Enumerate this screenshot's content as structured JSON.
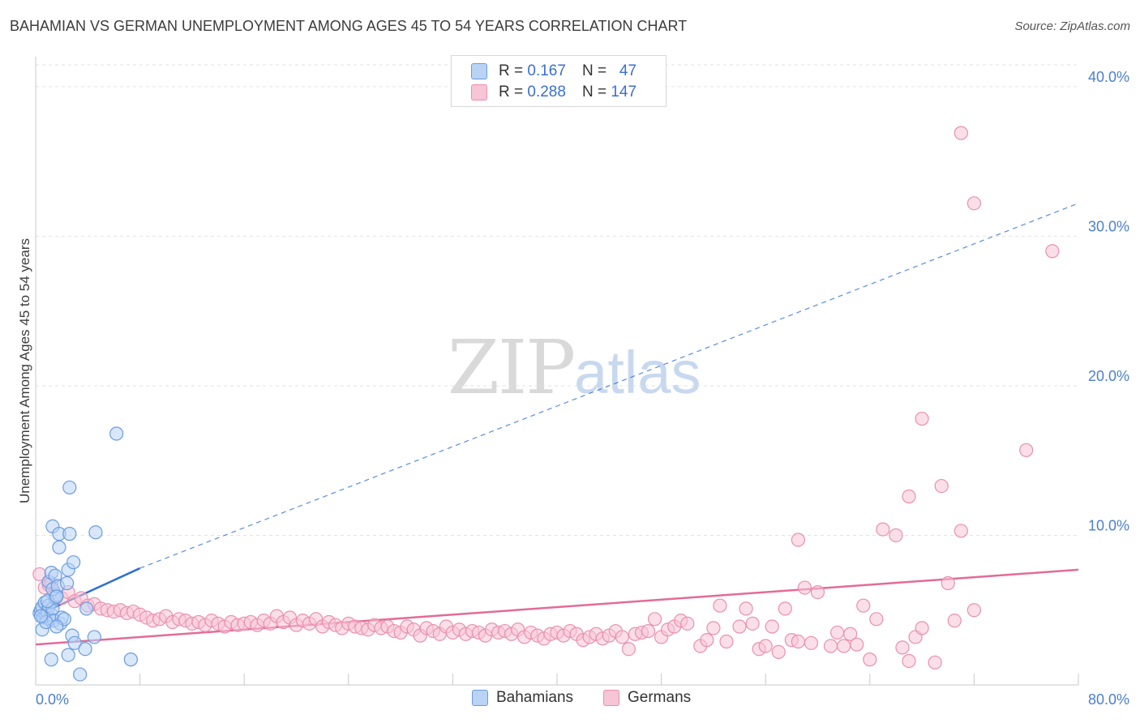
{
  "title": "BAHAMIAN VS GERMAN UNEMPLOYMENT AMONG AGES 45 TO 54 YEARS CORRELATION CHART",
  "source": "Source: ZipAtlas.com",
  "watermark": {
    "zip": "ZIP",
    "atlas": "atlas"
  },
  "legend": {
    "rows": [
      {
        "r_label": "R = ",
        "r_value": "0.167",
        "n_label": "N = ",
        "n_value": "47"
      },
      {
        "r_label": "R = ",
        "r_value": "0.288",
        "n_label": "N = ",
        "n_value": "147"
      }
    ]
  },
  "bottom_legend": {
    "bahamians": "Bahamians",
    "germans": "Germans"
  },
  "colors": {
    "bahamian_fill": "#b9d3f5",
    "bahamian_stroke": "#6a9be0",
    "bahamian_line": "#2f6fd1",
    "german_fill": "#f7c5d5",
    "german_stroke": "#ea8fae",
    "german_line": "#e36b98",
    "axis_text": "#4a7fd0",
    "grid": "#e2e2e2"
  },
  "chart_data": {
    "type": "scatter",
    "title": "BAHAMIAN VS GERMAN UNEMPLOYMENT AMONG AGES 45 TO 54 YEARS CORRELATION CHART",
    "xlabel": "",
    "ylabel": "Unemployment Among Ages 45 to 54 years",
    "xlim": [
      0,
      80
    ],
    "ylim": [
      0,
      42
    ],
    "x_tick_labels": [
      "0.0%",
      "80.0%"
    ],
    "y_ticks": [
      10,
      20,
      30,
      40
    ],
    "y_tick_labels": [
      "10.0%",
      "20.0%",
      "30.0%",
      "40.0%"
    ],
    "grid": true,
    "series": [
      {
        "name": "Bahamians",
        "r": 0.167,
        "n": 47,
        "trend": {
          "x": [
            0,
            8
          ],
          "y": [
            4.6,
            7.8
          ],
          "extended_to": [
            80,
            32.2
          ]
        },
        "points": [
          [
            0.3,
            4.8
          ],
          [
            0.4,
            5.0
          ],
          [
            0.5,
            5.2
          ],
          [
            0.6,
            4.5
          ],
          [
            0.7,
            5.5
          ],
          [
            0.8,
            4.6
          ],
          [
            0.9,
            4.9
          ],
          [
            1.0,
            5.3
          ],
          [
            1.1,
            4.4
          ],
          [
            1.2,
            4.7
          ],
          [
            1.3,
            5.1
          ],
          [
            1.4,
            4.3
          ],
          [
            1.5,
            5.8
          ],
          [
            1.6,
            6.0
          ],
          [
            0.5,
            3.7
          ],
          [
            0.8,
            4.2
          ],
          [
            1.0,
            6.9
          ],
          [
            1.2,
            7.5
          ],
          [
            1.5,
            7.3
          ],
          [
            1.3,
            6.4
          ],
          [
            1.7,
            6.6
          ],
          [
            1.9,
            4.1
          ],
          [
            2.0,
            4.5
          ],
          [
            2.2,
            4.4
          ],
          [
            2.4,
            6.8
          ],
          [
            2.5,
            7.7
          ],
          [
            1.8,
            9.2
          ],
          [
            1.3,
            10.6
          ],
          [
            1.8,
            10.1
          ],
          [
            2.6,
            10.1
          ],
          [
            2.9,
            8.2
          ],
          [
            4.6,
            10.2
          ],
          [
            2.6,
            13.2
          ],
          [
            6.2,
            16.8
          ],
          [
            0.4,
            4.6
          ],
          [
            0.9,
            5.6
          ],
          [
            1.6,
            5.9
          ],
          [
            2.8,
            3.3
          ],
          [
            3.0,
            2.8
          ],
          [
            3.8,
            2.4
          ],
          [
            4.5,
            3.2
          ],
          [
            2.5,
            2.0
          ],
          [
            1.2,
            1.7
          ],
          [
            7.3,
            1.7
          ],
          [
            3.4,
            0.7
          ],
          [
            1.6,
            3.9
          ],
          [
            3.9,
            5.1
          ]
        ]
      },
      {
        "name": "Germans",
        "r": 0.288,
        "n": 147,
        "trend": {
          "x": [
            0,
            80
          ],
          "y": [
            2.7,
            7.7
          ]
        },
        "points": [
          [
            0.3,
            7.4
          ],
          [
            0.7,
            6.5
          ],
          [
            1.0,
            6.7
          ],
          [
            1.5,
            6.1
          ],
          [
            2.0,
            5.8
          ],
          [
            2.5,
            6.2
          ],
          [
            3.0,
            5.6
          ],
          [
            3.5,
            5.8
          ],
          [
            4.0,
            5.3
          ],
          [
            4.5,
            5.4
          ],
          [
            5.0,
            5.1
          ],
          [
            5.5,
            5.0
          ],
          [
            6.0,
            4.9
          ],
          [
            6.5,
            5.0
          ],
          [
            7.0,
            4.8
          ],
          [
            7.5,
            4.9
          ],
          [
            8.0,
            4.7
          ],
          [
            8.5,
            4.5
          ],
          [
            9.0,
            4.3
          ],
          [
            9.5,
            4.4
          ],
          [
            10.0,
            4.6
          ],
          [
            10.5,
            4.2
          ],
          [
            11.0,
            4.4
          ],
          [
            11.5,
            4.3
          ],
          [
            12.0,
            4.1
          ],
          [
            12.5,
            4.2
          ],
          [
            13.0,
            4.0
          ],
          [
            13.5,
            4.3
          ],
          [
            14.0,
            4.1
          ],
          [
            14.5,
            3.9
          ],
          [
            15.0,
            4.2
          ],
          [
            15.5,
            4.0
          ],
          [
            16.0,
            4.1
          ],
          [
            16.5,
            4.2
          ],
          [
            17.0,
            4.0
          ],
          [
            17.5,
            4.3
          ],
          [
            18.0,
            4.1
          ],
          [
            18.5,
            4.6
          ],
          [
            19.0,
            4.2
          ],
          [
            19.5,
            4.5
          ],
          [
            20.0,
            4.0
          ],
          [
            20.5,
            4.3
          ],
          [
            21.0,
            4.1
          ],
          [
            21.5,
            4.4
          ],
          [
            22.0,
            3.9
          ],
          [
            22.5,
            4.2
          ],
          [
            23.0,
            4.0
          ],
          [
            23.5,
            3.8
          ],
          [
            24.0,
            4.1
          ],
          [
            24.5,
            3.9
          ],
          [
            25.0,
            3.8
          ],
          [
            25.5,
            3.7
          ],
          [
            26.0,
            4.0
          ],
          [
            26.5,
            3.8
          ],
          [
            27.0,
            3.9
          ],
          [
            27.5,
            3.6
          ],
          [
            28.0,
            3.5
          ],
          [
            28.5,
            3.9
          ],
          [
            29.0,
            3.7
          ],
          [
            29.5,
            3.3
          ],
          [
            30.0,
            3.8
          ],
          [
            30.5,
            3.6
          ],
          [
            31.0,
            3.4
          ],
          [
            31.5,
            3.9
          ],
          [
            32.0,
            3.5
          ],
          [
            32.5,
            3.7
          ],
          [
            33.0,
            3.4
          ],
          [
            33.5,
            3.6
          ],
          [
            34.0,
            3.5
          ],
          [
            34.5,
            3.3
          ],
          [
            35.0,
            3.7
          ],
          [
            35.5,
            3.5
          ],
          [
            36.0,
            3.6
          ],
          [
            36.5,
            3.4
          ],
          [
            37.0,
            3.7
          ],
          [
            37.5,
            3.2
          ],
          [
            38.0,
            3.5
          ],
          [
            38.5,
            3.3
          ],
          [
            39.0,
            3.1
          ],
          [
            39.5,
            3.4
          ],
          [
            40.0,
            3.5
          ],
          [
            40.5,
            3.3
          ],
          [
            41.0,
            3.6
          ],
          [
            41.5,
            3.4
          ],
          [
            42.0,
            3.0
          ],
          [
            42.5,
            3.2
          ],
          [
            43.0,
            3.4
          ],
          [
            43.5,
            3.1
          ],
          [
            44.0,
            3.3
          ],
          [
            44.5,
            3.6
          ],
          [
            45.0,
            3.2
          ],
          [
            45.5,
            2.4
          ],
          [
            46.0,
            3.4
          ],
          [
            46.5,
            3.5
          ],
          [
            47.0,
            3.6
          ],
          [
            47.5,
            4.4
          ],
          [
            48.0,
            3.2
          ],
          [
            48.5,
            3.7
          ],
          [
            49.0,
            3.9
          ],
          [
            49.5,
            4.3
          ],
          [
            50.0,
            4.1
          ],
          [
            51.0,
            2.6
          ],
          [
            51.5,
            3.0
          ],
          [
            52.0,
            3.8
          ],
          [
            52.5,
            5.3
          ],
          [
            53.0,
            2.9
          ],
          [
            54.0,
            3.9
          ],
          [
            54.5,
            5.1
          ],
          [
            55.0,
            4.1
          ],
          [
            55.5,
            2.4
          ],
          [
            56.0,
            2.6
          ],
          [
            56.5,
            3.9
          ],
          [
            57.0,
            2.2
          ],
          [
            57.5,
            5.1
          ],
          [
            58.0,
            3.0
          ],
          [
            58.5,
            2.9
          ],
          [
            59.0,
            6.5
          ],
          [
            59.5,
            2.8
          ],
          [
            60.0,
            6.2
          ],
          [
            61.0,
            2.6
          ],
          [
            61.5,
            3.5
          ],
          [
            62.0,
            2.6
          ],
          [
            62.5,
            3.4
          ],
          [
            63.0,
            2.7
          ],
          [
            63.5,
            5.3
          ],
          [
            64.0,
            1.7
          ],
          [
            64.5,
            4.4
          ],
          [
            65.0,
            10.4
          ],
          [
            66.0,
            10.0
          ],
          [
            66.5,
            2.5
          ],
          [
            67.0,
            1.6
          ],
          [
            67.5,
            3.2
          ],
          [
            68.0,
            3.8
          ],
          [
            69.0,
            1.5
          ],
          [
            70.0,
            6.8
          ],
          [
            70.5,
            4.3
          ],
          [
            71.0,
            10.3
          ],
          [
            72.0,
            5.0
          ],
          [
            58.5,
            9.7
          ],
          [
            67.0,
            12.6
          ],
          [
            69.5,
            13.3
          ],
          [
            68.0,
            17.8
          ],
          [
            76.0,
            15.7
          ],
          [
            72.0,
            32.2
          ],
          [
            71.0,
            36.9
          ],
          [
            78.0,
            29.0
          ],
          [
            1.2,
            6.8
          ]
        ]
      }
    ]
  }
}
